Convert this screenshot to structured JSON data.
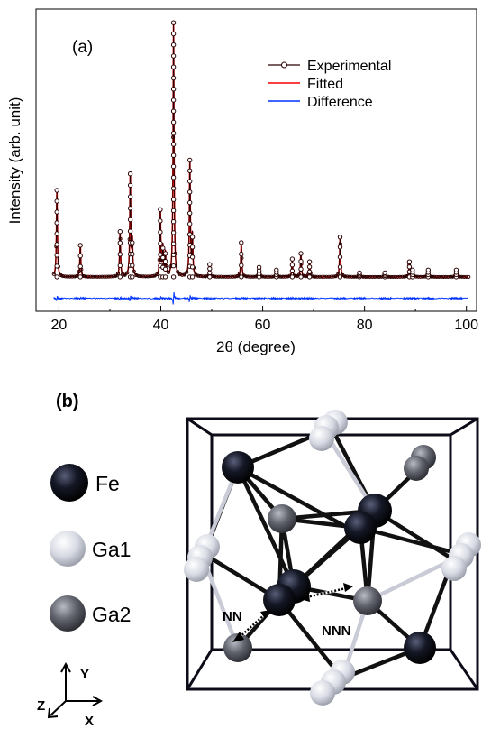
{
  "panel_a": {
    "label": "(a)",
    "chart_data": {
      "type": "line",
      "title": "",
      "xlabel": "2θ (degree)",
      "ylabel": "Intensity (arb. unit)",
      "xlim": [
        15.5,
        102
      ],
      "ylim": [
        -5,
        105
      ],
      "xticks": [
        20,
        40,
        60,
        80,
        100
      ],
      "yticks_visible": false,
      "grid": false,
      "legend_position": "top-right",
      "baseline": 7.5,
      "difference_offset": -0.3,
      "peaks": [
        {
          "x": 19.6,
          "y": 39
        },
        {
          "x": 24.2,
          "y": 19
        },
        {
          "x": 32.0,
          "y": 24
        },
        {
          "x": 34.0,
          "y": 45
        },
        {
          "x": 34.4,
          "y": 20
        },
        {
          "x": 39.9,
          "y": 32
        },
        {
          "x": 40.4,
          "y": 18
        },
        {
          "x": 40.9,
          "y": 16
        },
        {
          "x": 42.5,
          "y": 100
        },
        {
          "x": 45.7,
          "y": 50
        },
        {
          "x": 46.2,
          "y": 22
        },
        {
          "x": 49.6,
          "y": 12
        },
        {
          "x": 55.8,
          "y": 20
        },
        {
          "x": 59.3,
          "y": 11
        },
        {
          "x": 62.7,
          "y": 10
        },
        {
          "x": 65.8,
          "y": 14
        },
        {
          "x": 67.5,
          "y": 16
        },
        {
          "x": 69.2,
          "y": 13
        },
        {
          "x": 75.2,
          "y": 22
        },
        {
          "x": 79.0,
          "y": 9
        },
        {
          "x": 84.0,
          "y": 9
        },
        {
          "x": 88.8,
          "y": 13
        },
        {
          "x": 89.4,
          "y": 10
        },
        {
          "x": 92.5,
          "y": 10
        },
        {
          "x": 98.0,
          "y": 10
        }
      ],
      "series": [
        {
          "name": "Experimental",
          "color": "#2a0000",
          "marker": "open-circle"
        },
        {
          "name": "Fitted",
          "color": "#ff0000"
        },
        {
          "name": "Difference",
          "color": "#0033ff"
        }
      ]
    }
  },
  "panel_b": {
    "label": "(b)",
    "legend": [
      {
        "name": "Fe",
        "color": "#111122"
      },
      {
        "name": "Ga1",
        "color": "#d9dce6"
      },
      {
        "name": "Ga2",
        "color": "#63656f"
      }
    ],
    "annotations": {
      "nn": "NN",
      "nnn": "NNN"
    },
    "axes": {
      "y": "Y",
      "z": "Z",
      "x": "X"
    }
  }
}
